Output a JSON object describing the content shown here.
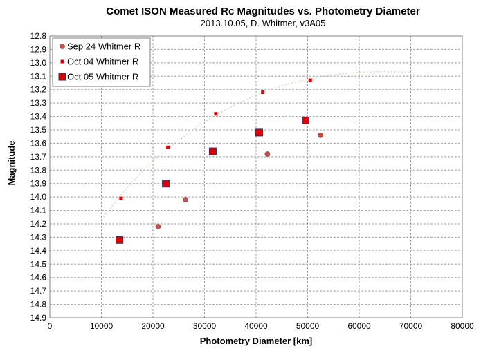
{
  "chart_data": {
    "type": "scatter",
    "title": "Comet ISON Measured Rc Magnitudes vs. Photometry Diameter",
    "subtitle": "2013.10.05,  D. Whitmer, v3A05",
    "xlabel": "Photometry Diameter  [km]",
    "ylabel": "Magnitude",
    "xlim": [
      0,
      80000
    ],
    "ylim": [
      12.8,
      14.9
    ],
    "y_inverted": true,
    "grid": true,
    "legend_position": "top-left",
    "x_ticks": [
      0,
      10000,
      20000,
      30000,
      40000,
      50000,
      60000,
      70000,
      80000
    ],
    "y_ticks": [
      12.8,
      12.9,
      13.0,
      13.1,
      13.2,
      13.3,
      13.4,
      13.5,
      13.6,
      13.7,
      13.8,
      13.9,
      14.0,
      14.1,
      14.2,
      14.3,
      14.4,
      14.5,
      14.6,
      14.7,
      14.8,
      14.9
    ],
    "series": [
      {
        "name": "Sep 24 Whitmer R",
        "marker": "circle",
        "color": "#c0504d",
        "x": [
          21000,
          26300,
          42200,
          52500
        ],
        "y": [
          14.22,
          14.02,
          13.68,
          13.54
        ]
      },
      {
        "name": "Oct 04 Whitmer R",
        "marker": "small-square",
        "color": "#e00000",
        "x": [
          13800,
          22900,
          32200,
          41300,
          50500
        ],
        "y": [
          14.01,
          13.63,
          13.38,
          13.22,
          13.13
        ]
      },
      {
        "name": "Oct 05 Whitmer R",
        "marker": "square",
        "color": "#e00000",
        "x": [
          13500,
          22500,
          31600,
          40600,
          49600
        ],
        "y": [
          14.32,
          13.9,
          13.66,
          13.52,
          13.43
        ]
      }
    ],
    "trendline": {
      "style": "dotted",
      "color": "#ddd8c2",
      "x": [
        10000,
        13000,
        16000,
        20000,
        25000,
        30000,
        35000,
        40000,
        45000,
        50000,
        55000,
        60000,
        65000,
        70000
      ],
      "y": [
        14.17,
        14.02,
        13.89,
        13.73,
        13.58,
        13.44,
        13.33,
        13.24,
        13.17,
        13.12,
        13.09,
        13.07,
        13.065,
        13.07
      ]
    }
  }
}
